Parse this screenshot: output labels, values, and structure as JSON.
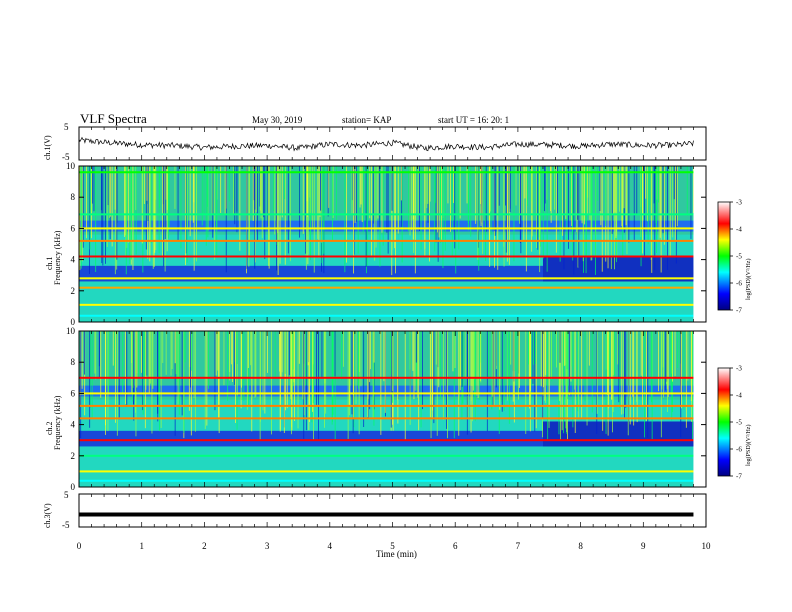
{
  "chart_data": [
    {
      "type": "line",
      "panel": "ch1-waveform",
      "title": "VLF Spectra",
      "date": "May 30, 2019",
      "station": "station= KAP",
      "start": "start  UT =   16: 20: 1",
      "ylabel": "ch.1(V)",
      "ylim": [
        -5,
        5
      ],
      "yticks": [
        "5",
        "-5"
      ],
      "xlim": [
        0,
        10
      ],
      "series": [
        {
          "x": [
            0,
            0.5,
            1,
            1.5,
            2,
            2.5,
            3,
            3.5,
            4,
            4.5,
            5,
            5.5,
            6,
            6.5,
            7,
            7.5,
            8,
            8.5,
            9,
            9.5,
            9.8
          ],
          "y": [
            1.0,
            0.2,
            -0.4,
            -0.6,
            -1.2,
            -0.8,
            -0.6,
            -1.4,
            -0.2,
            -0.6,
            0.2,
            -1.4,
            -0.8,
            -1.2,
            -0.2,
            -0.4,
            -0.8,
            -0.2,
            -0.6,
            -0.5,
            0.0
          ]
        }
      ]
    },
    {
      "type": "heatmap",
      "panel": "ch1-spectrogram",
      "ylabel": "ch.1",
      "ylabel2": "Frequency (kHz)",
      "yticks": [
        "0",
        "2",
        "4",
        "6",
        "8",
        "10"
      ],
      "ylim": [
        0,
        10
      ],
      "xlim": [
        0,
        10
      ],
      "z_unit": "log(PSD)(V²/Hz)",
      "zlim": [
        -7,
        -3
      ],
      "zticks": [
        "-3",
        "-4",
        "-5",
        "-6",
        "-7"
      ],
      "bands_khz": [
        0.4,
        1.1,
        2.2,
        2.8,
        4.2,
        5.2,
        6.0,
        6.9,
        9.6
      ],
      "band_colors": [
        "#00ffff",
        "#ffff00",
        "#ffa500",
        "#ffff00",
        "#ff0000",
        "#ff8000",
        "#ffff00",
        "#00ff80",
        "#00ff00"
      ],
      "step_time_min": 7.4
    },
    {
      "type": "heatmap",
      "panel": "ch2-spectrogram",
      "ylabel": "ch.2",
      "ylabel2": "Frequency (kHz)",
      "yticks": [
        "0",
        "2",
        "4",
        "6",
        "8",
        "10"
      ],
      "ylim": [
        0,
        10
      ],
      "xlim": [
        0,
        10
      ],
      "z_unit": "log(PSD)(V²/Hz)",
      "zlim": [
        -7,
        -3
      ],
      "zticks": [
        "-3",
        "-4",
        "-5",
        "-6",
        "-7"
      ],
      "bands_khz": [
        0.4,
        1.0,
        2.0,
        3.0,
        4.4,
        5.2,
        6.0,
        7.0
      ],
      "band_colors": [
        "#00ffff",
        "#ffff00",
        "#00ff80",
        "#ff0000",
        "#ff8000",
        "#ff8000",
        "#ffff00",
        "#ff0000"
      ],
      "step_time_min": 7.4
    },
    {
      "type": "line",
      "panel": "ch3-waveform",
      "ylabel": "ch.3(V)",
      "ylim": [
        -5,
        5
      ],
      "yticks": [
        "5",
        "-5"
      ],
      "xlim": [
        0,
        10
      ],
      "xlabel": "Time  (min)",
      "xticks": [
        "0",
        "1",
        "2",
        "3",
        "4",
        "5",
        "6",
        "7",
        "8",
        "9",
        "10"
      ],
      "series": [
        {
          "x": [
            0,
            9.8
          ],
          "y": [
            -1.2,
            -1.2
          ]
        }
      ]
    }
  ]
}
